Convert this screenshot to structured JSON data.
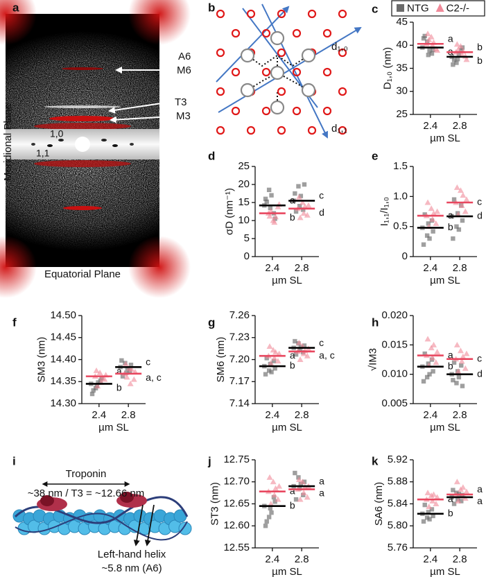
{
  "panel_a": {
    "label": "a",
    "annotations": [
      "A6",
      "M6",
      "T3",
      "M3"
    ],
    "reflections": [
      "1,0",
      "1,1"
    ],
    "ylabel": "Meridional Plane",
    "xlabel": "Equatorial Plane"
  },
  "panel_b": {
    "label": "b",
    "d10": "d₁,₀",
    "d11": "d₁,₁"
  },
  "panel_i": {
    "label": "i",
    "title": "Troponin",
    "spacing": "~38 nm / T3 = ~12.66 nm",
    "helix": "Left-hand helix",
    "helix_spacing": "~5.8 nm (A6)"
  },
  "chart_data": [
    {
      "type": "strip",
      "panel_label": "c",
      "legend": true,
      "categories": [
        "2.4",
        "2.8"
      ],
      "xlabel": "µm SL",
      "ylabel": "D₁,₀ (nm)",
      "ylim": [
        25,
        45
      ],
      "yticks": [
        25,
        30,
        35,
        40,
        45
      ],
      "series": [
        {
          "name": "NTG",
          "color": "#6b6b6b",
          "mean_color": "#000000",
          "marker": "square",
          "values": [
            [
              39.5,
              40.8,
              38.2,
              41.5,
              37.9,
              39.0,
              42.0,
              38.8
            ],
            [
              37.5,
              36.2,
              38.9,
              35.8,
              37.0,
              39.5,
              36.8,
              38.0
            ]
          ],
          "means": [
            39.5,
            37.5
          ],
          "letters": [
            "a",
            "b"
          ]
        },
        {
          "name": "C2-/-",
          "color": "#f08a9a",
          "mean_color": "#e8475f",
          "marker": "triangle",
          "values": [
            [
              40.3,
              41.8,
              39.2,
              42.5,
              40.0,
              38.9,
              41.2,
              40.6
            ],
            [
              38.5,
              39.8,
              37.6,
              40.2,
              38.0,
              36.9,
              39.1,
              38.7
            ]
          ],
          "means": [
            40.3,
            38.5
          ],
          "letters": [
            "a",
            "b"
          ]
        }
      ]
    },
    {
      "type": "strip",
      "panel_label": "d",
      "categories": [
        "2.4",
        "2.8"
      ],
      "xlabel": "µm SL",
      "ylabel": "σD (nm⁻¹)",
      "ylim": [
        0,
        25
      ],
      "yticks": [
        0,
        5,
        10,
        15,
        20,
        25
      ],
      "series": [
        {
          "name": "NTG",
          "color": "#6b6b6b",
          "mean_color": "#000000",
          "marker": "square",
          "values": [
            [
              14.2,
              18.5,
              12.0,
              16.0,
              13.5,
              10.5,
              15.2,
              17.0
            ],
            [
              15.5,
              19.5,
              13.0,
              17.5,
              14.0,
              20.0,
              12.5,
              16.8
            ]
          ],
          "means": [
            14.2,
            15.5
          ],
          "letters": [
            "a",
            "c"
          ]
        },
        {
          "name": "C2-/-",
          "color": "#f08a9a",
          "mean_color": "#e8475f",
          "marker": "triangle",
          "values": [
            [
              12.0,
              10.0,
              13.8,
              11.2,
              9.5,
              14.5,
              12.6,
              11.0
            ],
            [
              13.3,
              15.0,
              11.5,
              16.5,
              12.0,
              14.2,
              10.8,
              13.9
            ]
          ],
          "means": [
            12.0,
            13.3
          ],
          "letters": [
            "b",
            "d"
          ]
        }
      ]
    },
    {
      "type": "strip",
      "panel_label": "e",
      "categories": [
        "2.4",
        "2.8"
      ],
      "xlabel": "µm SL",
      "ylabel": "I₁,₁/I₁,₀",
      "ylim": [
        0,
        1.5
      ],
      "yticks": [
        0,
        0.5,
        {
          "value": 1,
          "label": "1.0"
        },
        1.5
      ],
      "series": [
        {
          "name": "NTG",
          "color": "#6b6b6b",
          "mean_color": "#000000",
          "marker": "square",
          "values": [
            [
              0.48,
              0.35,
              0.6,
              0.2,
              0.55,
              0.42,
              0.7,
              0.3
            ],
            [
              0.67,
              0.5,
              0.85,
              0.3,
              0.72,
              0.6,
              0.95,
              0.45
            ]
          ],
          "means": [
            0.48,
            0.67
          ],
          "letters": [
            "b",
            "d"
          ]
        },
        {
          "name": "C2-/-",
          "color": "#f08a9a",
          "mean_color": "#e8475f",
          "marker": "triangle",
          "values": [
            [
              0.68,
              0.8,
              0.55,
              0.9,
              0.62,
              0.75,
              0.5,
              0.72
            ],
            [
              0.9,
              1.1,
              0.75,
              1.15,
              0.85,
              0.95,
              0.7,
              1.02
            ]
          ],
          "means": [
            0.68,
            0.9
          ],
          "letters": [
            "a",
            "c"
          ]
        }
      ]
    },
    {
      "type": "strip",
      "panel_label": "f",
      "categories": [
        "2.4",
        "2.8"
      ],
      "xlabel": "µm SL",
      "ylabel": "SM3 (nm)",
      "ylim": [
        14.3,
        14.5
      ],
      "yticks": [
        {
          "value": 14.3,
          "label": "14.30"
        },
        14.35,
        {
          "value": 14.4,
          "label": "14.40"
        },
        14.45,
        {
          "value": 14.5,
          "label": "14.50"
        }
      ],
      "series": [
        {
          "name": "NTG",
          "color": "#6b6b6b",
          "mean_color": "#000000",
          "marker": "square",
          "values": [
            [
              14.345,
              14.335,
              14.352,
              14.322,
              14.34,
              14.358,
              14.33,
              14.348
            ],
            [
              14.383,
              14.392,
              14.375,
              14.398,
              14.37,
              14.388,
              14.362,
              14.38
            ]
          ],
          "means": [
            14.345,
            14.383
          ],
          "letters": [
            "b",
            "c"
          ]
        },
        {
          "name": "C2-/-",
          "color": "#f08a9a",
          "mean_color": "#e8475f",
          "marker": "triangle",
          "values": [
            [
              14.362,
              14.37,
              14.355,
              14.375,
              14.348,
              14.365,
              14.34,
              14.358
            ],
            [
              14.368,
              14.38,
              14.355,
              14.39,
              14.345,
              14.372,
              14.36,
              14.378
            ]
          ],
          "means": [
            14.362,
            14.368
          ],
          "letters": [
            "a",
            "a, c"
          ]
        }
      ]
    },
    {
      "type": "strip",
      "panel_label": "g",
      "categories": [
        "2.4",
        "2.8"
      ],
      "xlabel": "µm SL",
      "ylabel": "SM6 (nm)",
      "ylim": [
        7.14,
        7.26
      ],
      "yticks": [
        7.14,
        7.17,
        {
          "value": 7.2,
          "label": "7.20"
        },
        7.23,
        7.26
      ],
      "series": [
        {
          "name": "NTG",
          "color": "#6b6b6b",
          "mean_color": "#000000",
          "marker": "square",
          "values": [
            [
              7.191,
              7.185,
              7.198,
              7.18,
              7.194,
              7.188,
              7.202,
              7.183
            ],
            [
              7.216,
              7.222,
              7.21,
              7.225,
              7.213,
              7.219,
              7.207,
              7.217
            ]
          ],
          "means": [
            7.191,
            7.216
          ],
          "letters": [
            "b",
            "c"
          ]
        },
        {
          "name": "C2-/-",
          "color": "#f08a9a",
          "mean_color": "#e8475f",
          "marker": "triangle",
          "values": [
            [
              7.205,
              7.213,
              7.198,
              7.218,
              7.202,
              7.208,
              7.195,
              7.21
            ],
            [
              7.211,
              7.218,
              7.205,
              7.223,
              7.208,
              7.215,
              7.2,
              7.212
            ]
          ],
          "means": [
            7.205,
            7.211
          ],
          "letters": [
            "a",
            "a, c"
          ]
        }
      ]
    },
    {
      "type": "strip",
      "panel_label": "h",
      "categories": [
        "2.4",
        "2.8"
      ],
      "xlabel": "µm SL",
      "ylabel": "√IM3",
      "ylim": [
        0.005,
        0.02
      ],
      "yticks": [
        0.005,
        {
          "value": 0.01,
          "label": "0.010"
        },
        0.015,
        {
          "value": 0.02,
          "label": "0.020"
        }
      ],
      "series": [
        {
          "name": "NTG",
          "color": "#6b6b6b",
          "mean_color": "#000000",
          "marker": "square",
          "values": [
            [
              0.0113,
              0.0095,
              0.0125,
              0.0088,
              0.0118,
              0.0105,
              0.0135,
              0.01
            ],
            [
              0.01,
              0.0085,
              0.0115,
              0.009,
              0.0105,
              0.008,
              0.012,
              0.0095
            ]
          ],
          "means": [
            0.0113,
            0.01
          ],
          "letters": [
            "b",
            "d"
          ]
        },
        {
          "name": "C2-/-",
          "color": "#f08a9a",
          "mean_color": "#e8475f",
          "marker": "triangle",
          "values": [
            [
              0.0132,
              0.0145,
              0.012,
              0.016,
              0.0128,
              0.0138,
              0.0115,
              0.015
            ],
            [
              0.0126,
              0.014,
              0.011,
              0.015,
              0.0122,
              0.0135,
              0.0105,
              0.013
            ]
          ],
          "means": [
            0.0132,
            0.0126
          ],
          "letters": [
            "a",
            "c"
          ]
        }
      ]
    },
    {
      "type": "strip",
      "panel_label": "j",
      "categories": [
        "2.4",
        "2.8"
      ],
      "xlabel": "µm SL",
      "ylabel": "ST3 (nm)",
      "ylim": [
        12.55,
        12.75
      ],
      "yticks": [
        12.55,
        {
          "value": 12.6,
          "label": "12.60"
        },
        12.65,
        {
          "value": 12.7,
          "label": "12.70"
        },
        12.75
      ],
      "series": [
        {
          "name": "NTG",
          "color": "#6b6b6b",
          "mean_color": "#000000",
          "marker": "square",
          "values": [
            [
              12.645,
              12.62,
              12.665,
              12.6,
              12.64,
              12.655,
              12.61,
              12.63
            ],
            [
              12.69,
              12.71,
              12.67,
              12.72,
              12.685,
              12.7,
              12.66,
              12.695
            ]
          ],
          "means": [
            12.645,
            12.69
          ],
          "letters": [
            "b",
            "a"
          ]
        },
        {
          "name": "C2-/-",
          "color": "#f08a9a",
          "mean_color": "#e8475f",
          "marker": "triangle",
          "values": [
            [
              12.678,
              12.7,
              12.66,
              12.71,
              12.67,
              12.69,
              12.65,
              12.685
            ],
            [
              12.683,
              12.7,
              12.665,
              12.705,
              12.675,
              12.69,
              12.66,
              12.688
            ]
          ],
          "means": [
            12.678,
            12.683
          ],
          "letters": [
            "a",
            "a"
          ]
        }
      ]
    },
    {
      "type": "strip",
      "panel_label": "k",
      "categories": [
        "2.4",
        "2.8"
      ],
      "xlabel": "µm SL",
      "ylabel": "SA6 (nm)",
      "ylim": [
        5.76,
        5.92
      ],
      "yticks": [
        5.76,
        {
          "value": 5.8,
          "label": "5.80"
        },
        5.84,
        5.88,
        5.92
      ],
      "series": [
        {
          "name": "NTG",
          "color": "#6b6b6b",
          "mean_color": "#000000",
          "marker": "square",
          "values": [
            [
              5.822,
              5.815,
              5.83,
              5.808,
              5.825,
              5.818,
              5.838,
              5.812
            ],
            [
              5.852,
              5.86,
              5.845,
              5.865,
              5.848,
              5.856,
              5.84,
              5.858
            ]
          ],
          "means": [
            5.822,
            5.852
          ],
          "letters": [
            "b",
            "a"
          ]
        },
        {
          "name": "C2-/-",
          "color": "#f08a9a",
          "mean_color": "#e8475f",
          "marker": "triangle",
          "values": [
            [
              5.848,
              5.855,
              5.84,
              5.86,
              5.845,
              5.852,
              5.835,
              5.857
            ],
            [
              5.857,
              5.866,
              5.85,
              5.88,
              5.854,
              5.862,
              5.845,
              5.87
            ]
          ],
          "means": [
            5.848,
            5.857
          ],
          "letters": [
            "a",
            "a"
          ]
        }
      ]
    }
  ]
}
